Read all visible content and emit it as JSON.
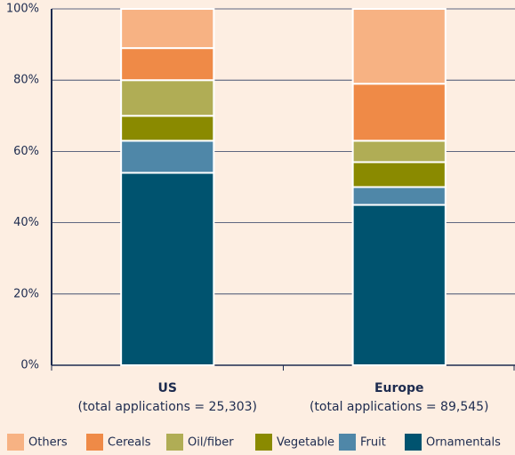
{
  "chart_data": {
    "type": "stacked_bar",
    "categories": [
      "US",
      "Europe"
    ],
    "category_notes": [
      "(total applications = 25,303)",
      "(total applications = 89,545)"
    ],
    "series": [
      {
        "name": "Ornamentals",
        "color": "#00536f",
        "values": [
          54,
          45
        ]
      },
      {
        "name": "Fruit",
        "color": "#4f87a8",
        "values": [
          9,
          5
        ]
      },
      {
        "name": "Vegetable",
        "color": "#8a8a00",
        "values": [
          7,
          7
        ]
      },
      {
        "name": "Oil/fiber",
        "color": "#b0ad55",
        "values": [
          10,
          6
        ]
      },
      {
        "name": "Cereals",
        "color": "#ef8a47",
        "values": [
          9,
          16
        ]
      },
      {
        "name": "Others",
        "color": "#f7b283",
        "values": [
          11,
          21
        ]
      }
    ],
    "ylim": [
      0,
      100
    ],
    "yticks": [
      {
        "value": 0,
        "label": "0%"
      },
      {
        "value": 20,
        "label": "20%"
      },
      {
        "value": 40,
        "label": "40%"
      },
      {
        "value": 60,
        "label": "60%"
      },
      {
        "value": 80,
        "label": "80%"
      },
      {
        "value": 100,
        "label": "100%"
      }
    ],
    "grid": true
  }
}
